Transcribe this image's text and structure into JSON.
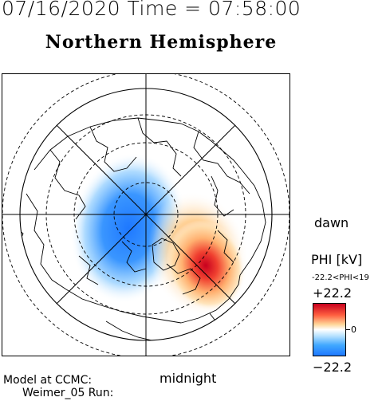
{
  "header": {
    "timestamp": "07/16/2020 Time = 07:58:00",
    "hemisphere": "Northern Hemisphere"
  },
  "map": {
    "local_time_labels": {
      "dawn": "dawn",
      "midnight": "midnight"
    },
    "projection": "polar stereographic, north pole centered",
    "grid": "dashed latitude circles, solid meridians every 45 degrees"
  },
  "colorbar": {
    "title": "PHI [kV]",
    "range_label": "-22.2<PHI<19",
    "max_label": "+22.2",
    "min_label": "−22.2",
    "zero_label": "0",
    "colors": {
      "max": "#c8001e",
      "zero": "#ffffff",
      "min": "#1e78ff"
    }
  },
  "footer": {
    "line1": "Model at CCMC:",
    "line2": "Weimer_05 Run:"
  }
}
